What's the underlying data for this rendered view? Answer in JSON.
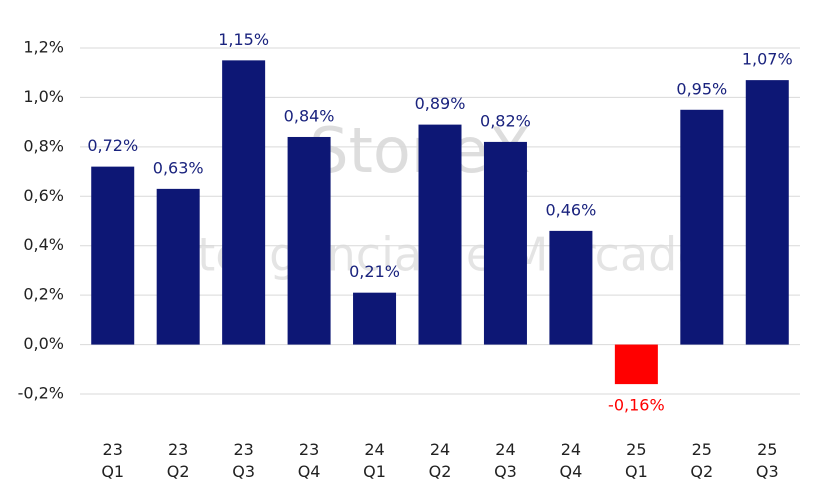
{
  "chart_data": {
    "type": "bar",
    "watermark": "StoneX",
    "watermark_subtitle": "Inteligência de Mercado",
    "categories": [
      [
        "23",
        "Q1"
      ],
      [
        "23",
        "Q2"
      ],
      [
        "23",
        "Q3"
      ],
      [
        "23",
        "Q4"
      ],
      [
        "24",
        "Q1"
      ],
      [
        "24",
        "Q2"
      ],
      [
        "24",
        "Q3"
      ],
      [
        "24",
        "Q4"
      ],
      [
        "25",
        "Q1"
      ],
      [
        "25",
        "Q2"
      ],
      [
        "25",
        "Q3"
      ]
    ],
    "values": [
      0.72,
      0.63,
      1.15,
      0.84,
      0.21,
      0.89,
      0.82,
      0.46,
      -0.16,
      0.95,
      1.07
    ],
    "value_labels": [
      "0,72%",
      "0,63%",
      "1,15%",
      "0,84%",
      "0,21%",
      "0,89%",
      "0,82%",
      "0,46%",
      "-0,16%",
      "0,95%",
      "1,07%"
    ],
    "colors": [
      "#0d1775",
      "#0d1775",
      "#0d1775",
      "#0d1775",
      "#0d1775",
      "#0d1775",
      "#0d1775",
      "#0d1775",
      "#ff0000",
      "#0d1775",
      "#0d1775"
    ],
    "ylim": [
      -0.2,
      1.2
    ],
    "yticks": [
      {
        "value": -0.2,
        "label": "-0,2%"
      },
      {
        "value": 0,
        "label": "0,0%"
      },
      {
        "value": 0.2,
        "label": "0,2%"
      },
      {
        "value": 0.4,
        "label": "0,4%"
      },
      {
        "value": 0.6,
        "label": "0,6%"
      },
      {
        "value": 0.8,
        "label": "0,8%"
      },
      {
        "value": 1.0,
        "label": "1,0%"
      },
      {
        "value": 1.2,
        "label": "1,2%"
      }
    ],
    "grid": true
  }
}
